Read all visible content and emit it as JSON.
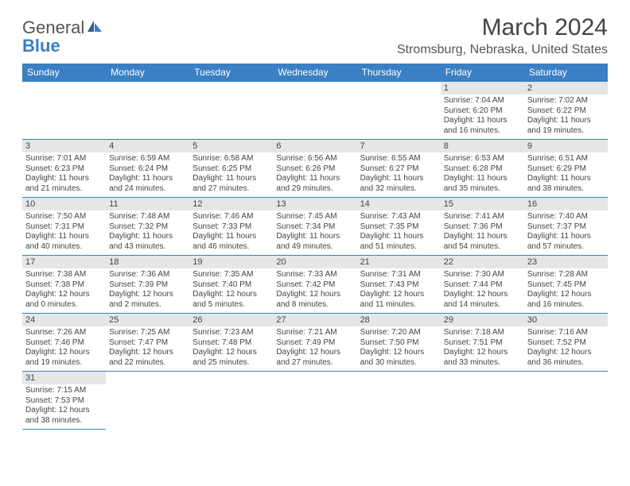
{
  "logo": {
    "word1": "General",
    "word2": "Blue"
  },
  "title": "March 2024",
  "location": "Stromsburg, Nebraska, United States",
  "colors": {
    "accent": "#3b7fc4",
    "daynum_bg": "#e6e6e6",
    "text": "#444444",
    "background": "#ffffff"
  },
  "weekdays": [
    "Sunday",
    "Monday",
    "Tuesday",
    "Wednesday",
    "Thursday",
    "Friday",
    "Saturday"
  ],
  "weeks": [
    [
      null,
      null,
      null,
      null,
      null,
      {
        "n": "1",
        "sr": "Sunrise: 7:04 AM",
        "ss": "Sunset: 6:20 PM",
        "dl": "Daylight: 11 hours and 16 minutes."
      },
      {
        "n": "2",
        "sr": "Sunrise: 7:02 AM",
        "ss": "Sunset: 6:22 PM",
        "dl": "Daylight: 11 hours and 19 minutes."
      }
    ],
    [
      {
        "n": "3",
        "sr": "Sunrise: 7:01 AM",
        "ss": "Sunset: 6:23 PM",
        "dl": "Daylight: 11 hours and 21 minutes."
      },
      {
        "n": "4",
        "sr": "Sunrise: 6:59 AM",
        "ss": "Sunset: 6:24 PM",
        "dl": "Daylight: 11 hours and 24 minutes."
      },
      {
        "n": "5",
        "sr": "Sunrise: 6:58 AM",
        "ss": "Sunset: 6:25 PM",
        "dl": "Daylight: 11 hours and 27 minutes."
      },
      {
        "n": "6",
        "sr": "Sunrise: 6:56 AM",
        "ss": "Sunset: 6:26 PM",
        "dl": "Daylight: 11 hours and 29 minutes."
      },
      {
        "n": "7",
        "sr": "Sunrise: 6:55 AM",
        "ss": "Sunset: 6:27 PM",
        "dl": "Daylight: 11 hours and 32 minutes."
      },
      {
        "n": "8",
        "sr": "Sunrise: 6:53 AM",
        "ss": "Sunset: 6:28 PM",
        "dl": "Daylight: 11 hours and 35 minutes."
      },
      {
        "n": "9",
        "sr": "Sunrise: 6:51 AM",
        "ss": "Sunset: 6:29 PM",
        "dl": "Daylight: 11 hours and 38 minutes."
      }
    ],
    [
      {
        "n": "10",
        "sr": "Sunrise: 7:50 AM",
        "ss": "Sunset: 7:31 PM",
        "dl": "Daylight: 11 hours and 40 minutes."
      },
      {
        "n": "11",
        "sr": "Sunrise: 7:48 AM",
        "ss": "Sunset: 7:32 PM",
        "dl": "Daylight: 11 hours and 43 minutes."
      },
      {
        "n": "12",
        "sr": "Sunrise: 7:46 AM",
        "ss": "Sunset: 7:33 PM",
        "dl": "Daylight: 11 hours and 46 minutes."
      },
      {
        "n": "13",
        "sr": "Sunrise: 7:45 AM",
        "ss": "Sunset: 7:34 PM",
        "dl": "Daylight: 11 hours and 49 minutes."
      },
      {
        "n": "14",
        "sr": "Sunrise: 7:43 AM",
        "ss": "Sunset: 7:35 PM",
        "dl": "Daylight: 11 hours and 51 minutes."
      },
      {
        "n": "15",
        "sr": "Sunrise: 7:41 AM",
        "ss": "Sunset: 7:36 PM",
        "dl": "Daylight: 11 hours and 54 minutes."
      },
      {
        "n": "16",
        "sr": "Sunrise: 7:40 AM",
        "ss": "Sunset: 7:37 PM",
        "dl": "Daylight: 11 hours and 57 minutes."
      }
    ],
    [
      {
        "n": "17",
        "sr": "Sunrise: 7:38 AM",
        "ss": "Sunset: 7:38 PM",
        "dl": "Daylight: 12 hours and 0 minutes."
      },
      {
        "n": "18",
        "sr": "Sunrise: 7:36 AM",
        "ss": "Sunset: 7:39 PM",
        "dl": "Daylight: 12 hours and 2 minutes."
      },
      {
        "n": "19",
        "sr": "Sunrise: 7:35 AM",
        "ss": "Sunset: 7:40 PM",
        "dl": "Daylight: 12 hours and 5 minutes."
      },
      {
        "n": "20",
        "sr": "Sunrise: 7:33 AM",
        "ss": "Sunset: 7:42 PM",
        "dl": "Daylight: 12 hours and 8 minutes."
      },
      {
        "n": "21",
        "sr": "Sunrise: 7:31 AM",
        "ss": "Sunset: 7:43 PM",
        "dl": "Daylight: 12 hours and 11 minutes."
      },
      {
        "n": "22",
        "sr": "Sunrise: 7:30 AM",
        "ss": "Sunset: 7:44 PM",
        "dl": "Daylight: 12 hours and 14 minutes."
      },
      {
        "n": "23",
        "sr": "Sunrise: 7:28 AM",
        "ss": "Sunset: 7:45 PM",
        "dl": "Daylight: 12 hours and 16 minutes."
      }
    ],
    [
      {
        "n": "24",
        "sr": "Sunrise: 7:26 AM",
        "ss": "Sunset: 7:46 PM",
        "dl": "Daylight: 12 hours and 19 minutes."
      },
      {
        "n": "25",
        "sr": "Sunrise: 7:25 AM",
        "ss": "Sunset: 7:47 PM",
        "dl": "Daylight: 12 hours and 22 minutes."
      },
      {
        "n": "26",
        "sr": "Sunrise: 7:23 AM",
        "ss": "Sunset: 7:48 PM",
        "dl": "Daylight: 12 hours and 25 minutes."
      },
      {
        "n": "27",
        "sr": "Sunrise: 7:21 AM",
        "ss": "Sunset: 7:49 PM",
        "dl": "Daylight: 12 hours and 27 minutes."
      },
      {
        "n": "28",
        "sr": "Sunrise: 7:20 AM",
        "ss": "Sunset: 7:50 PM",
        "dl": "Daylight: 12 hours and 30 minutes."
      },
      {
        "n": "29",
        "sr": "Sunrise: 7:18 AM",
        "ss": "Sunset: 7:51 PM",
        "dl": "Daylight: 12 hours and 33 minutes."
      },
      {
        "n": "30",
        "sr": "Sunrise: 7:16 AM",
        "ss": "Sunset: 7:52 PM",
        "dl": "Daylight: 12 hours and 36 minutes."
      }
    ],
    [
      {
        "n": "31",
        "sr": "Sunrise: 7:15 AM",
        "ss": "Sunset: 7:53 PM",
        "dl": "Daylight: 12 hours and 38 minutes."
      },
      null,
      null,
      null,
      null,
      null,
      null
    ]
  ]
}
